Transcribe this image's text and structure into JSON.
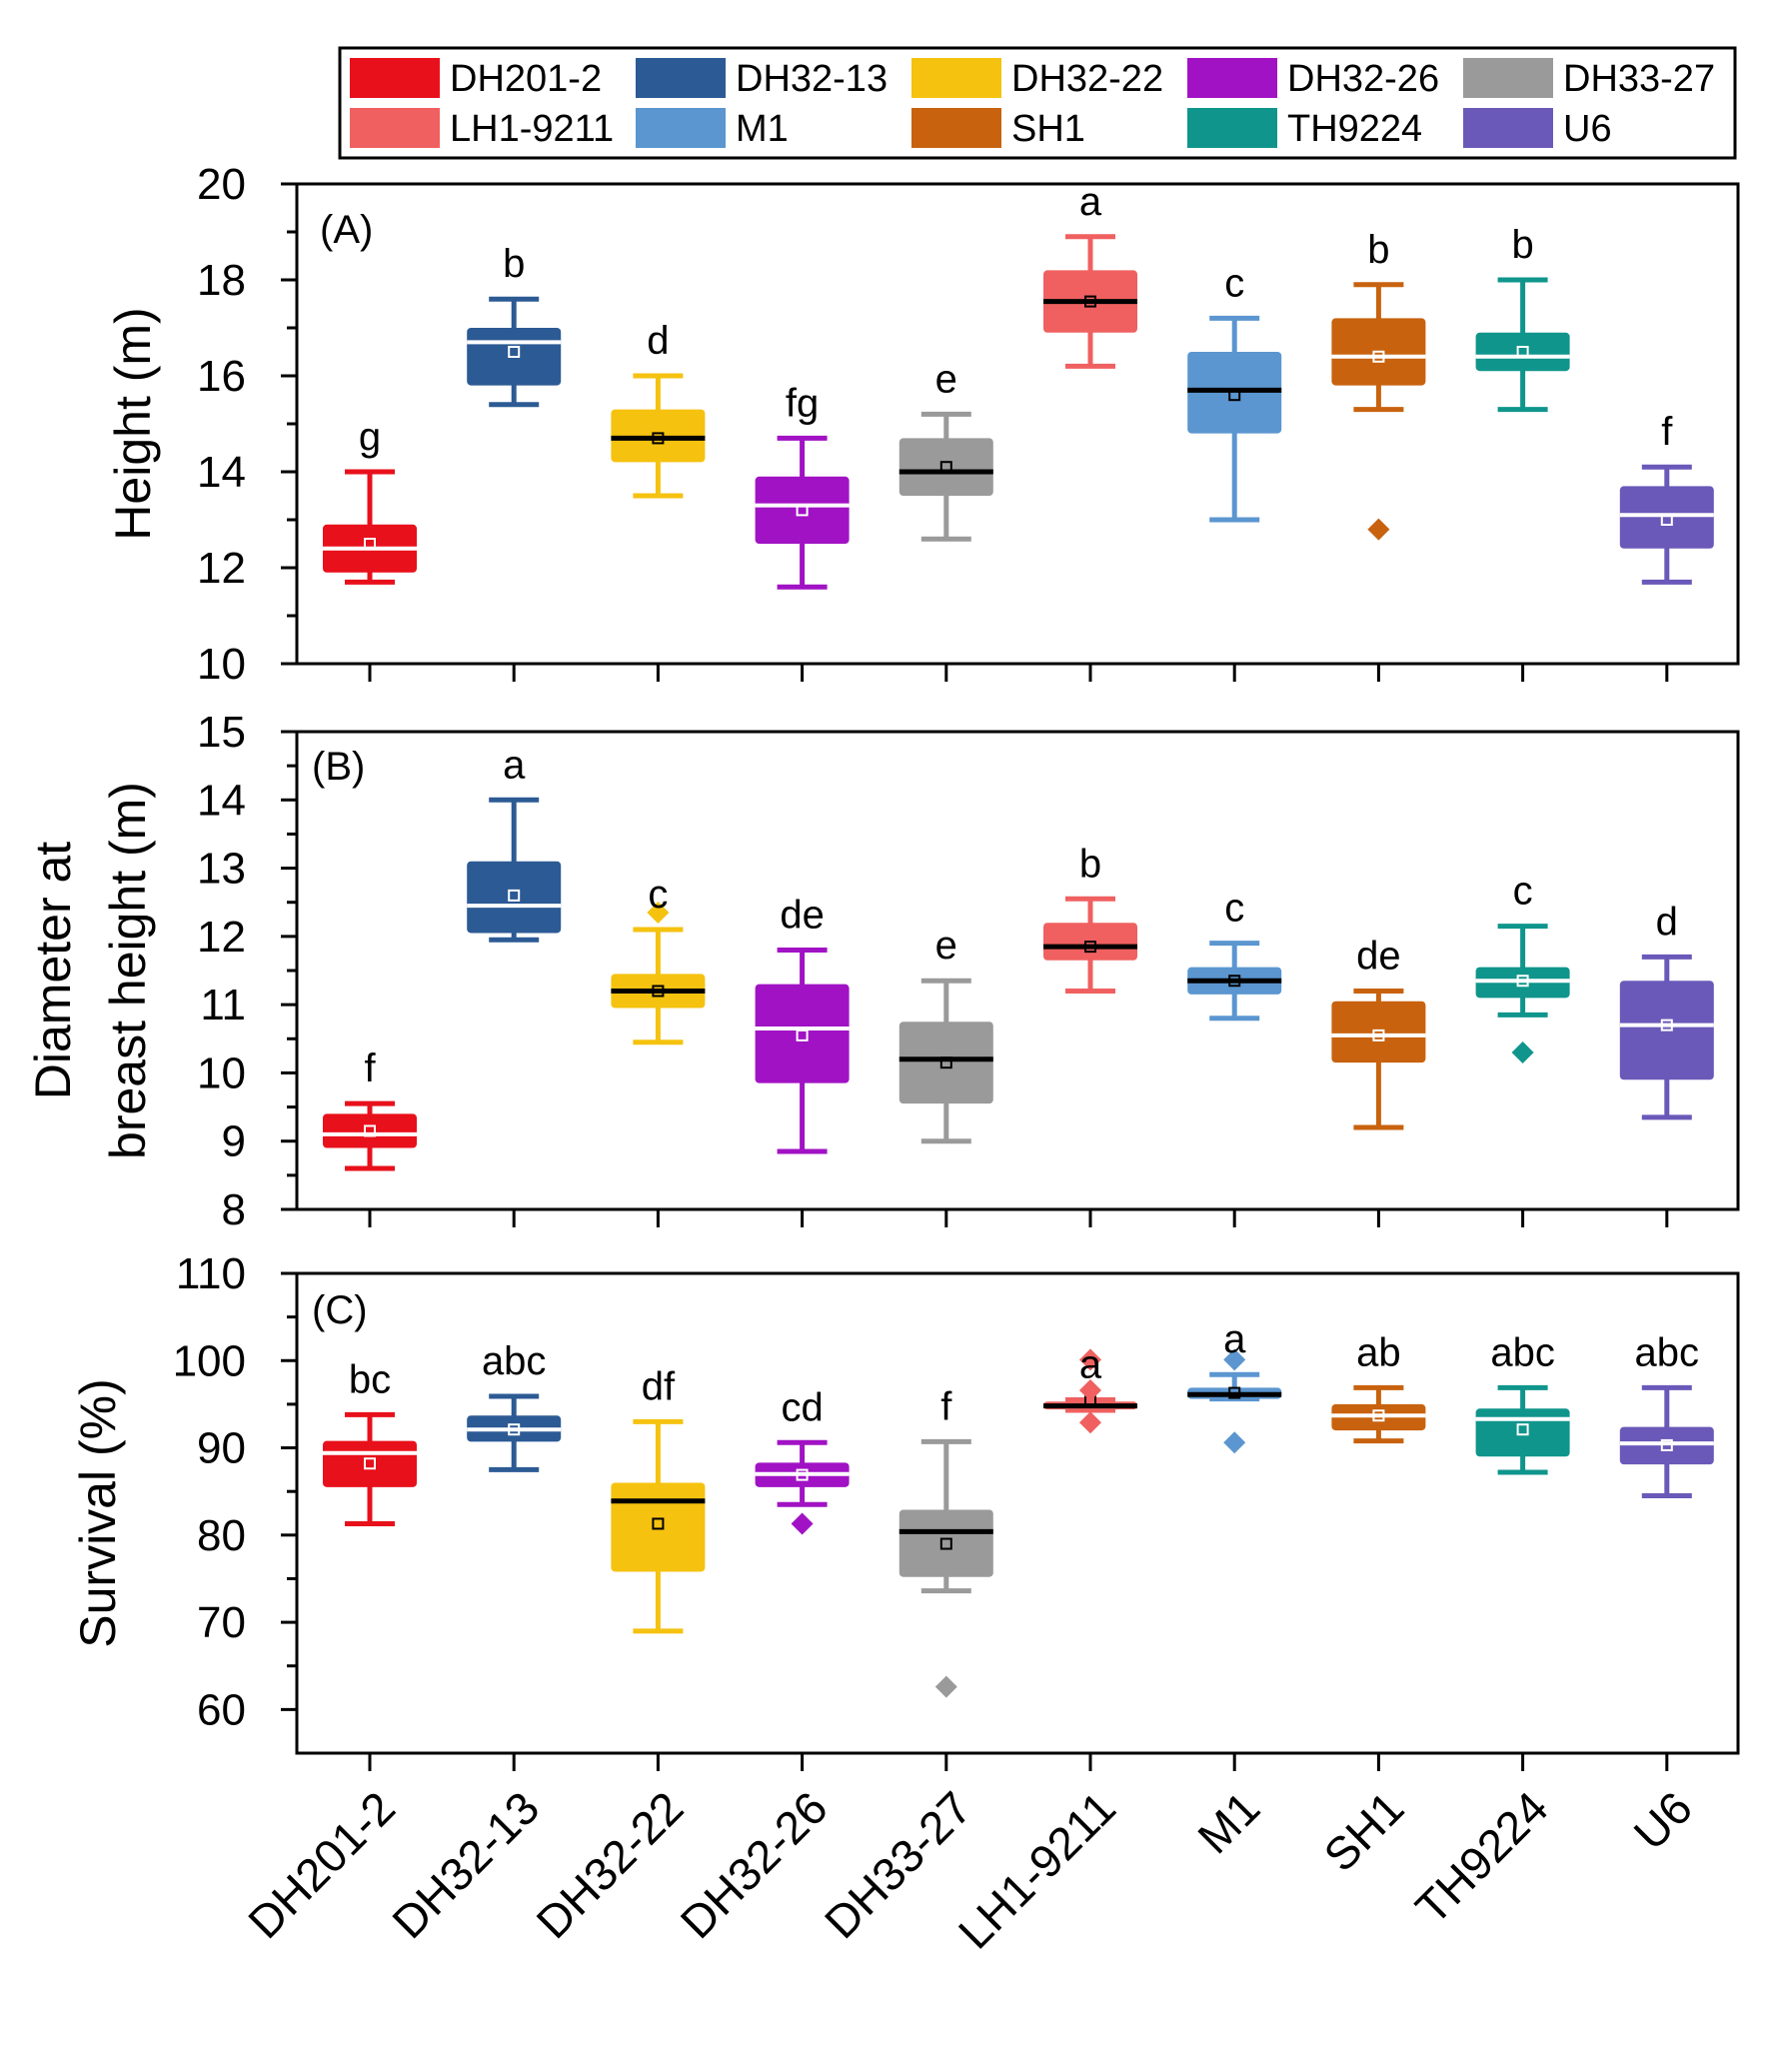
{
  "colors": {
    "DH201-2": "#e8101b",
    "DH32-13": "#2c5a94",
    "DH32-22": "#f5c20f",
    "DH32-26": "#a112c4",
    "DH33-27": "#9a9a9a",
    "LH1-9211": "#f06060",
    "M1": "#5b96d0",
    "SH1": "#c8620e",
    "TH9224": "#0f958c",
    "U6": "#6a59b9"
  },
  "legend": {
    "entries": [
      "DH201-2",
      "DH32-13",
      "DH32-22",
      "DH32-26",
      "DH33-27",
      "LH1-9211",
      "M1",
      "SH1",
      "TH9224",
      "U6"
    ]
  },
  "x_categories": [
    "DH201-2",
    "DH32-13",
    "DH32-22",
    "DH32-26",
    "DH33-27",
    "LH1-9211",
    "M1",
    "SH1",
    "TH9224",
    "U6"
  ],
  "chart_data": [
    {
      "type": "box",
      "panel_label": "(A)",
      "ylabel": "Height (m)",
      "ylim": [
        10,
        20
      ],
      "yticks": [
        10,
        12,
        14,
        16,
        18,
        20
      ],
      "categories": [
        "DH201-2",
        "DH32-13",
        "DH32-22",
        "DH32-26",
        "DH33-27",
        "LH1-9211",
        "M1",
        "SH1",
        "TH9224",
        "U6"
      ],
      "boxes": [
        {
          "min": 11.7,
          "q1": 11.9,
          "median": 12.4,
          "q3": 12.9,
          "max": 14.0,
          "mean": 12.5,
          "outliers": []
        },
        {
          "min": 15.4,
          "q1": 15.8,
          "median": 16.7,
          "q3": 17.0,
          "max": 17.6,
          "mean": 16.5,
          "outliers": []
        },
        {
          "min": 13.5,
          "q1": 14.2,
          "median": 14.7,
          "q3": 15.3,
          "max": 16.0,
          "mean": 14.7,
          "outliers": []
        },
        {
          "min": 11.6,
          "q1": 12.5,
          "median": 13.3,
          "q3": 13.9,
          "max": 14.7,
          "mean": 13.2,
          "outliers": []
        },
        {
          "min": 12.6,
          "q1": 13.5,
          "median": 14.0,
          "q3": 14.7,
          "max": 15.2,
          "mean": 14.1,
          "outliers": []
        },
        {
          "min": 16.2,
          "q1": 16.9,
          "median": 17.55,
          "q3": 18.2,
          "max": 18.9,
          "mean": 17.55,
          "outliers": []
        },
        {
          "min": 13.0,
          "q1": 14.8,
          "median": 15.7,
          "q3": 16.5,
          "max": 17.2,
          "mean": 15.6,
          "outliers": []
        },
        {
          "min": 15.3,
          "q1": 15.8,
          "median": 16.4,
          "q3": 17.2,
          "max": 17.9,
          "mean": 16.4,
          "outliers": [
            12.8
          ]
        },
        {
          "min": 15.3,
          "q1": 16.1,
          "median": 16.4,
          "q3": 16.9,
          "max": 18.0,
          "mean": 16.5,
          "outliers": []
        },
        {
          "min": 11.7,
          "q1": 12.4,
          "median": 13.1,
          "q3": 13.7,
          "max": 14.1,
          "mean": 13.0,
          "outliers": []
        }
      ],
      "median_colors": [
        "#ffffff",
        "#ffffff",
        "#000000",
        "#ffffff",
        "#000000",
        "#000000",
        "#000000",
        "#ffffff",
        "#ffffff",
        "#ffffff"
      ],
      "letters": [
        "g",
        "b",
        "d",
        "fg",
        "e",
        "a",
        "c",
        "b",
        "b",
        "f"
      ]
    },
    {
      "type": "box",
      "panel_label": "(B)",
      "ylabel_lines": [
        "Diameter at",
        "breast height (m)"
      ],
      "ylim": [
        8,
        15
      ],
      "yticks": [
        8,
        9,
        10,
        11,
        12,
        13,
        14,
        15
      ],
      "categories": [
        "DH201-2",
        "DH32-13",
        "DH32-22",
        "DH32-26",
        "DH33-27",
        "LH1-9211",
        "M1",
        "SH1",
        "TH9224",
        "U6"
      ],
      "boxes": [
        {
          "min": 8.6,
          "q1": 8.9,
          "median": 9.1,
          "q3": 9.4,
          "max": 9.55,
          "mean": 9.15,
          "outliers": []
        },
        {
          "min": 11.95,
          "q1": 12.05,
          "median": 12.45,
          "q3": 13.1,
          "max": 14.0,
          "mean": 12.6,
          "outliers": []
        },
        {
          "min": 10.45,
          "q1": 10.95,
          "median": 11.2,
          "q3": 11.45,
          "max": 12.1,
          "mean": 11.2,
          "outliers": [
            12.35
          ]
        },
        {
          "min": 8.85,
          "q1": 9.85,
          "median": 10.65,
          "q3": 11.3,
          "max": 11.8,
          "mean": 10.55,
          "outliers": []
        },
        {
          "min": 9.0,
          "q1": 9.55,
          "median": 10.2,
          "q3": 10.75,
          "max": 11.35,
          "mean": 10.15,
          "outliers": []
        },
        {
          "min": 11.2,
          "q1": 11.65,
          "median": 11.85,
          "q3": 12.2,
          "max": 12.55,
          "mean": 11.85,
          "outliers": []
        },
        {
          "min": 10.8,
          "q1": 11.15,
          "median": 11.35,
          "q3": 11.55,
          "max": 11.9,
          "mean": 11.35,
          "outliers": []
        },
        {
          "min": 9.2,
          "q1": 10.15,
          "median": 10.55,
          "q3": 11.05,
          "max": 11.2,
          "mean": 10.55,
          "outliers": []
        },
        {
          "min": 10.85,
          "q1": 11.1,
          "median": 11.35,
          "q3": 11.55,
          "max": 12.15,
          "mean": 11.35,
          "outliers": [
            10.3
          ]
        },
        {
          "min": 9.35,
          "q1": 9.9,
          "median": 10.7,
          "q3": 11.35,
          "max": 11.7,
          "mean": 10.7,
          "outliers": []
        }
      ],
      "median_colors": [
        "#ffffff",
        "#ffffff",
        "#000000",
        "#ffffff",
        "#000000",
        "#000000",
        "#000000",
        "#ffffff",
        "#ffffff",
        "#ffffff"
      ],
      "letters": [
        "f",
        "a",
        "c",
        "de",
        "e",
        "b",
        "c",
        "de",
        "c",
        "d"
      ]
    },
    {
      "type": "box",
      "panel_label": "(C)",
      "ylabel": "Survival (%)",
      "ylim": [
        55,
        110
      ],
      "yticks": [
        60,
        70,
        80,
        90,
        100,
        110
      ],
      "categories": [
        "DH201-2",
        "DH32-13",
        "DH32-22",
        "DH32-26",
        "DH33-27",
        "LH1-9211",
        "M1",
        "SH1",
        "TH9224",
        "U6"
      ],
      "boxes": [
        {
          "min": 81.3,
          "q1": 85.5,
          "median": 89.4,
          "q3": 90.8,
          "max": 93.8,
          "mean": 88.2,
          "outliers": []
        },
        {
          "min": 87.5,
          "q1": 90.7,
          "median": 92.1,
          "q3": 93.7,
          "max": 95.9,
          "mean": 92.1,
          "outliers": []
        },
        {
          "min": 69.0,
          "q1": 75.8,
          "median": 83.9,
          "q3": 86.0,
          "max": 93.0,
          "mean": 81.3,
          "outliers": []
        },
        {
          "min": 83.5,
          "q1": 85.5,
          "median": 87.0,
          "q3": 88.3,
          "max": 90.6,
          "mean": 86.9,
          "outliers": [
            81.3
          ]
        },
        {
          "min": 73.6,
          "q1": 75.2,
          "median": 80.4,
          "q3": 82.9,
          "max": 90.7,
          "mean": 79.0,
          "outliers": [
            62.6
          ]
        },
        {
          "min": 94.3,
          "q1": 94.4,
          "median": 94.8,
          "q3": 95.3,
          "max": 95.5,
          "mean": 95.3,
          "outliers": [
            100.1,
            96.6,
            92.9
          ]
        },
        {
          "min": 95.6,
          "q1": 95.6,
          "median": 96.1,
          "q3": 96.9,
          "max": 98.4,
          "mean": 96.3,
          "outliers": [
            100.1,
            90.6
          ]
        },
        {
          "min": 90.8,
          "q1": 92.0,
          "median": 93.7,
          "q3": 95.0,
          "max": 96.9,
          "mean": 93.7,
          "outliers": []
        },
        {
          "min": 87.2,
          "q1": 89.0,
          "median": 93.3,
          "q3": 94.5,
          "max": 96.9,
          "mean": 92.1,
          "outliers": []
        },
        {
          "min": 84.5,
          "q1": 88.1,
          "median": 90.5,
          "q3": 92.4,
          "max": 96.9,
          "mean": 90.3,
          "outliers": []
        }
      ],
      "median_colors": [
        "#ffffff",
        "#ffffff",
        "#000000",
        "#ffffff",
        "#000000",
        "#000000",
        "#000000",
        "#ffffff",
        "#ffffff",
        "#ffffff"
      ],
      "letters": [
        "bc",
        "abc",
        "df",
        "cd",
        "f",
        "a",
        "a",
        "ab",
        "abc",
        "abc"
      ]
    }
  ]
}
